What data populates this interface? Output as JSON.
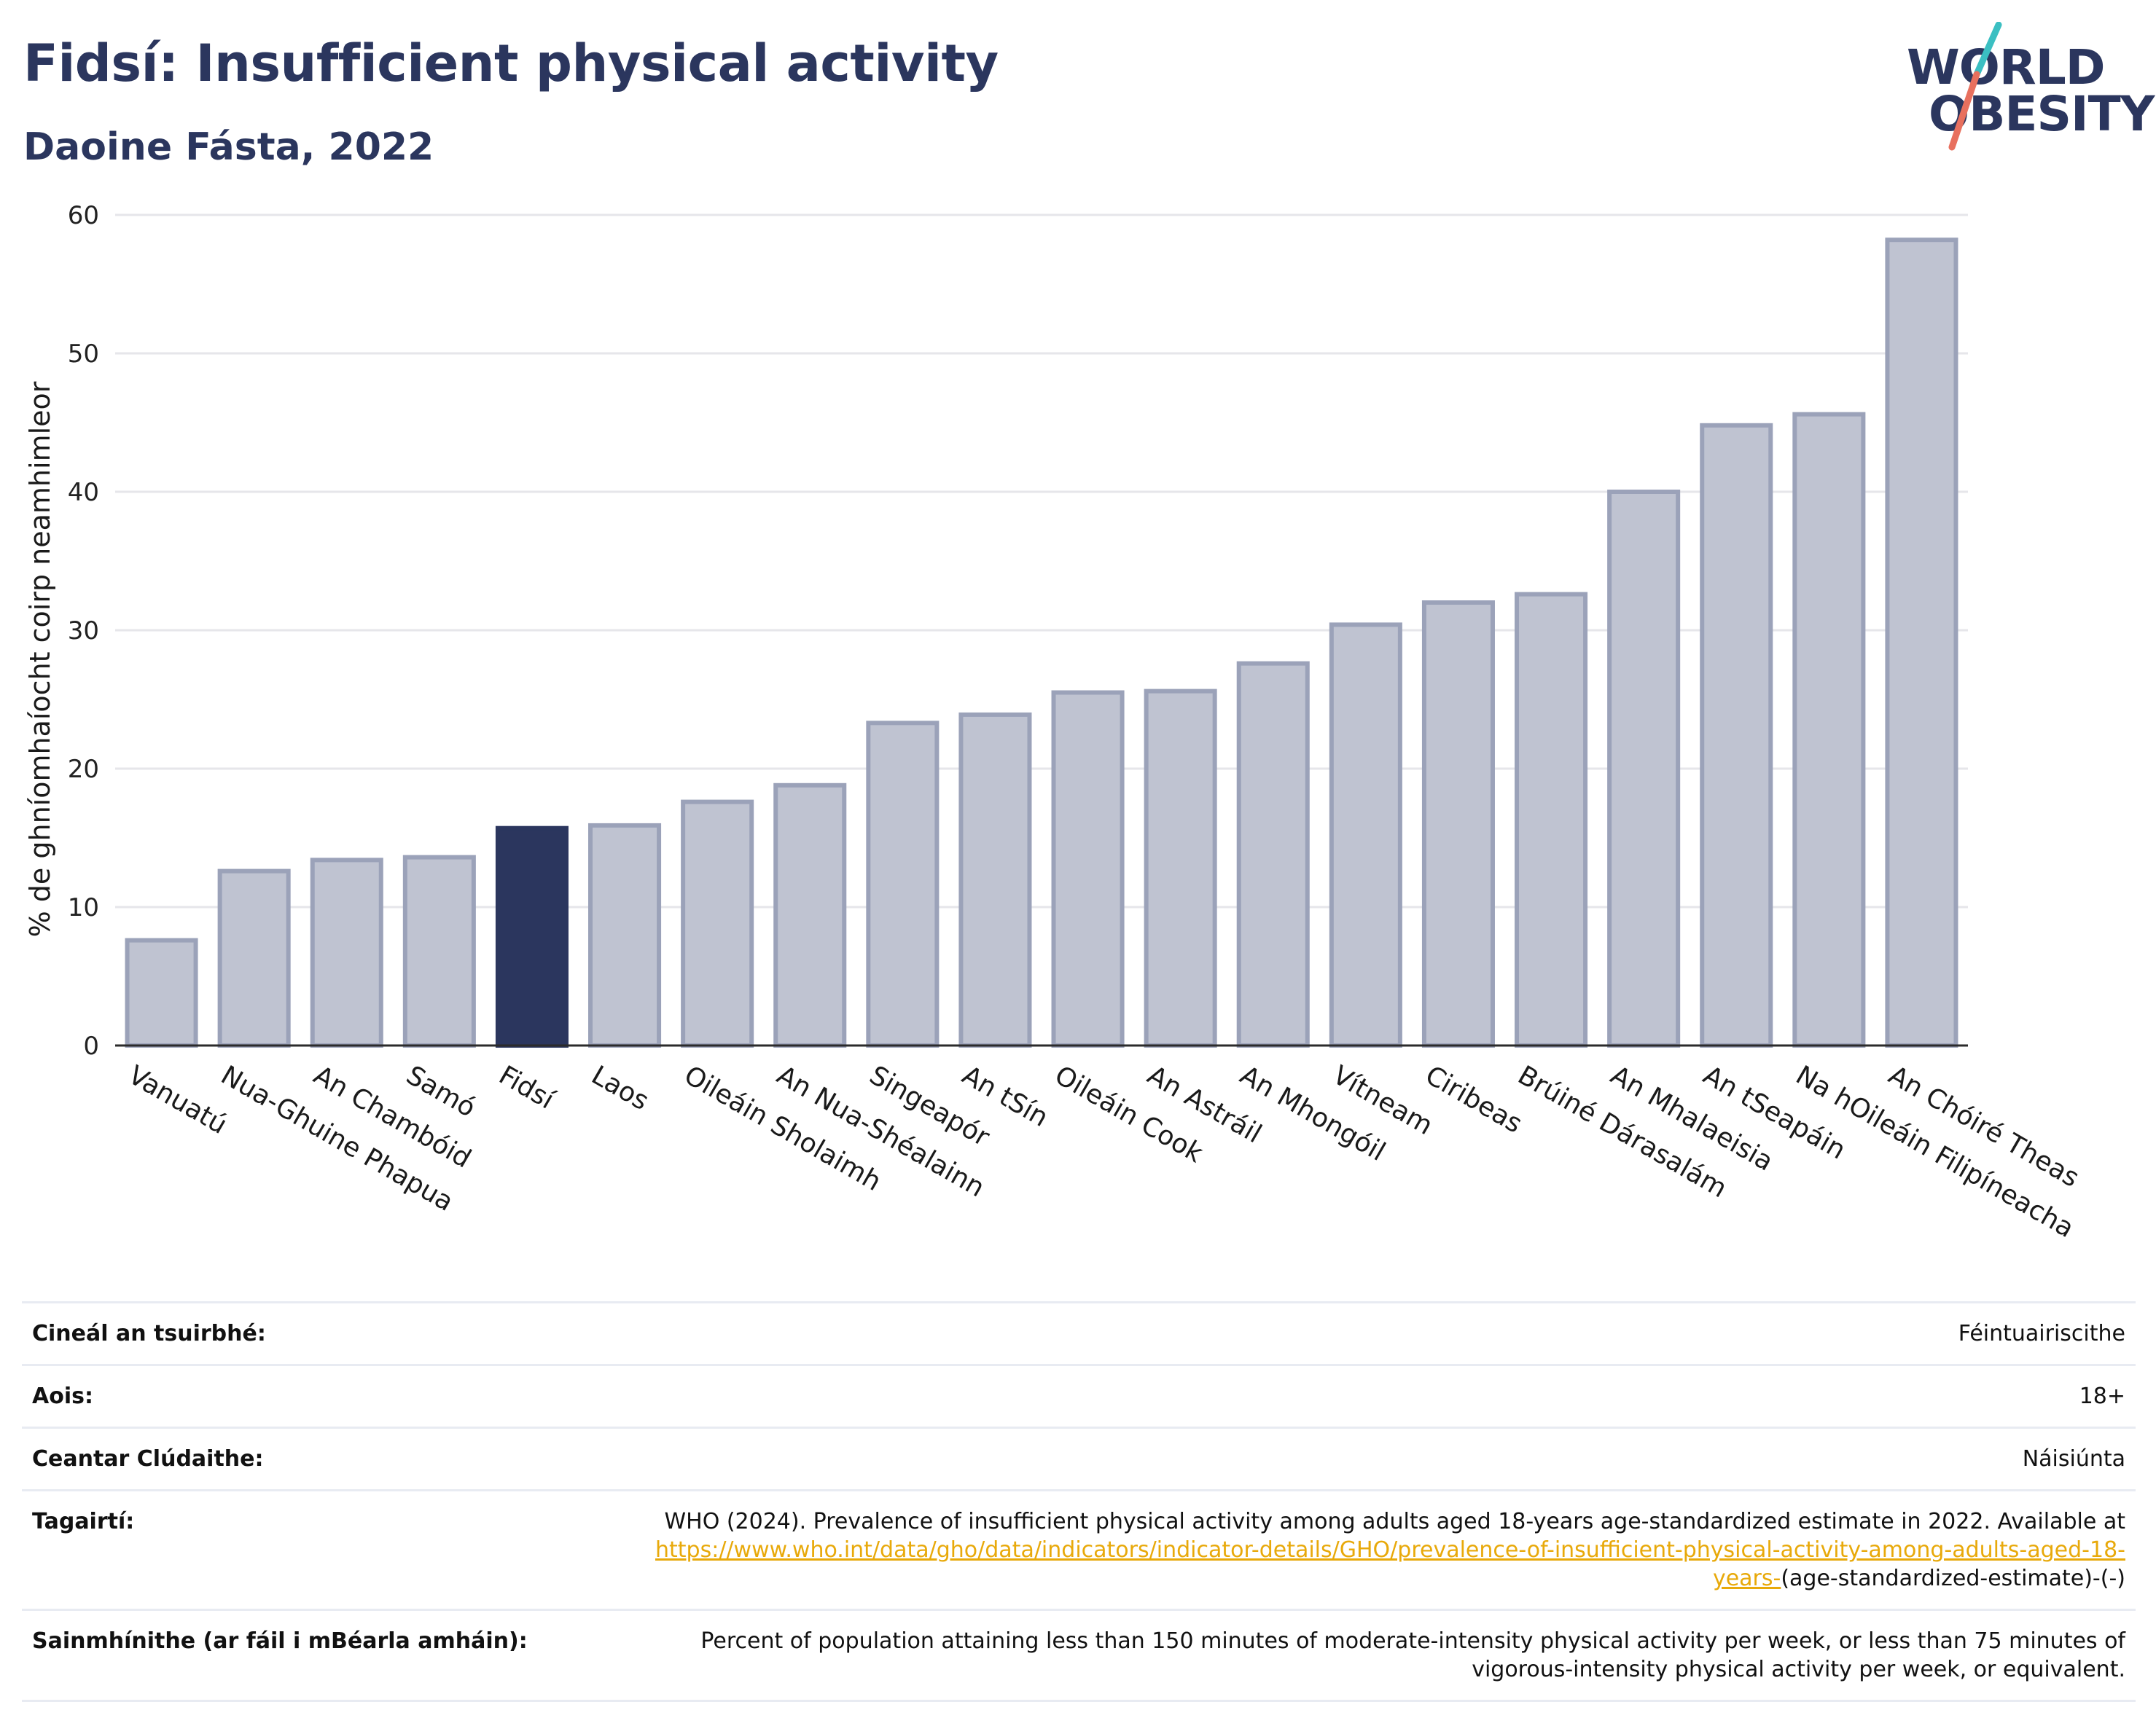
{
  "header": {
    "title": "Fidsí: Insufficient physical activity",
    "subtitle": "Daoine Fásta, 2022"
  },
  "logo": {
    "line1": "WORLD",
    "line2": "OBESITY"
  },
  "colors": {
    "highlight": "#2b365e",
    "bar": "#bfc3d1",
    "bar_edge": "#9ba2b9",
    "grid": "#e6e6ea",
    "logo_teal": "#3bbfc2",
    "logo_coral": "#e8705e",
    "link": "#e8a90a"
  },
  "chart_data": {
    "type": "bar",
    "ylabel": "% de ghníomhaíocht coirp neamhimleor",
    "ylim": [
      0,
      60
    ],
    "yticks": [
      0,
      10,
      20,
      30,
      40,
      50,
      60
    ],
    "grid": true,
    "highlight": "Fidsí",
    "categories": [
      "Vanuatú",
      "Nua-Ghuine Phapua",
      "An Chambóid",
      "Samó",
      "Fidsí",
      "Laos",
      "Oileáin Sholaimh",
      "An Nua-Shéalainn",
      "Singeapór",
      "An tSín",
      "Oileáin Cook",
      "An Astráil",
      "An Mhongóil",
      "Vítneam",
      "Ciribeas",
      "Brúiné Dárasalám",
      "An Mhalaeisia",
      "An tSeapáin",
      "Na hOileáin Filipíneacha",
      "An Chóiré Theas"
    ],
    "values": [
      7.6,
      12.6,
      13.4,
      13.6,
      15.7,
      15.9,
      17.6,
      18.8,
      23.3,
      23.9,
      25.5,
      25.6,
      27.6,
      30.4,
      32.0,
      32.6,
      40.0,
      44.8,
      45.6,
      58.2
    ]
  },
  "info": {
    "rows": [
      {
        "label": "Cineál an tsuirbhé:",
        "value": "Féintuairiscithe"
      },
      {
        "label": "Aois:",
        "value": "18+"
      },
      {
        "label": "Ceantar Clúdaithe:",
        "value": "Náisiúnta"
      }
    ],
    "references": {
      "label": "Tagairtí:",
      "text_before": "WHO (2024). Prevalence of insufficient physical activity among adults aged 18-years age-standardized estimate in 2022. Available at",
      "link": "https://www.who.int/data/gho/data/indicators/indicator-details/GHO/prevalence-of-insufficient-physical-activity-among-adults-aged-18-years-",
      "text_after": "(age-standardized-estimate)-(-)"
    },
    "definitions": {
      "label": "Sainmhínithe (ar fáil i mBéarla amháin):",
      "value": "Percent of population attaining less than 150 minutes of moderate-intensity physical activity per week, or less than 75 minutes of vigorous-intensity physical activity per week, or equivalent."
    }
  }
}
